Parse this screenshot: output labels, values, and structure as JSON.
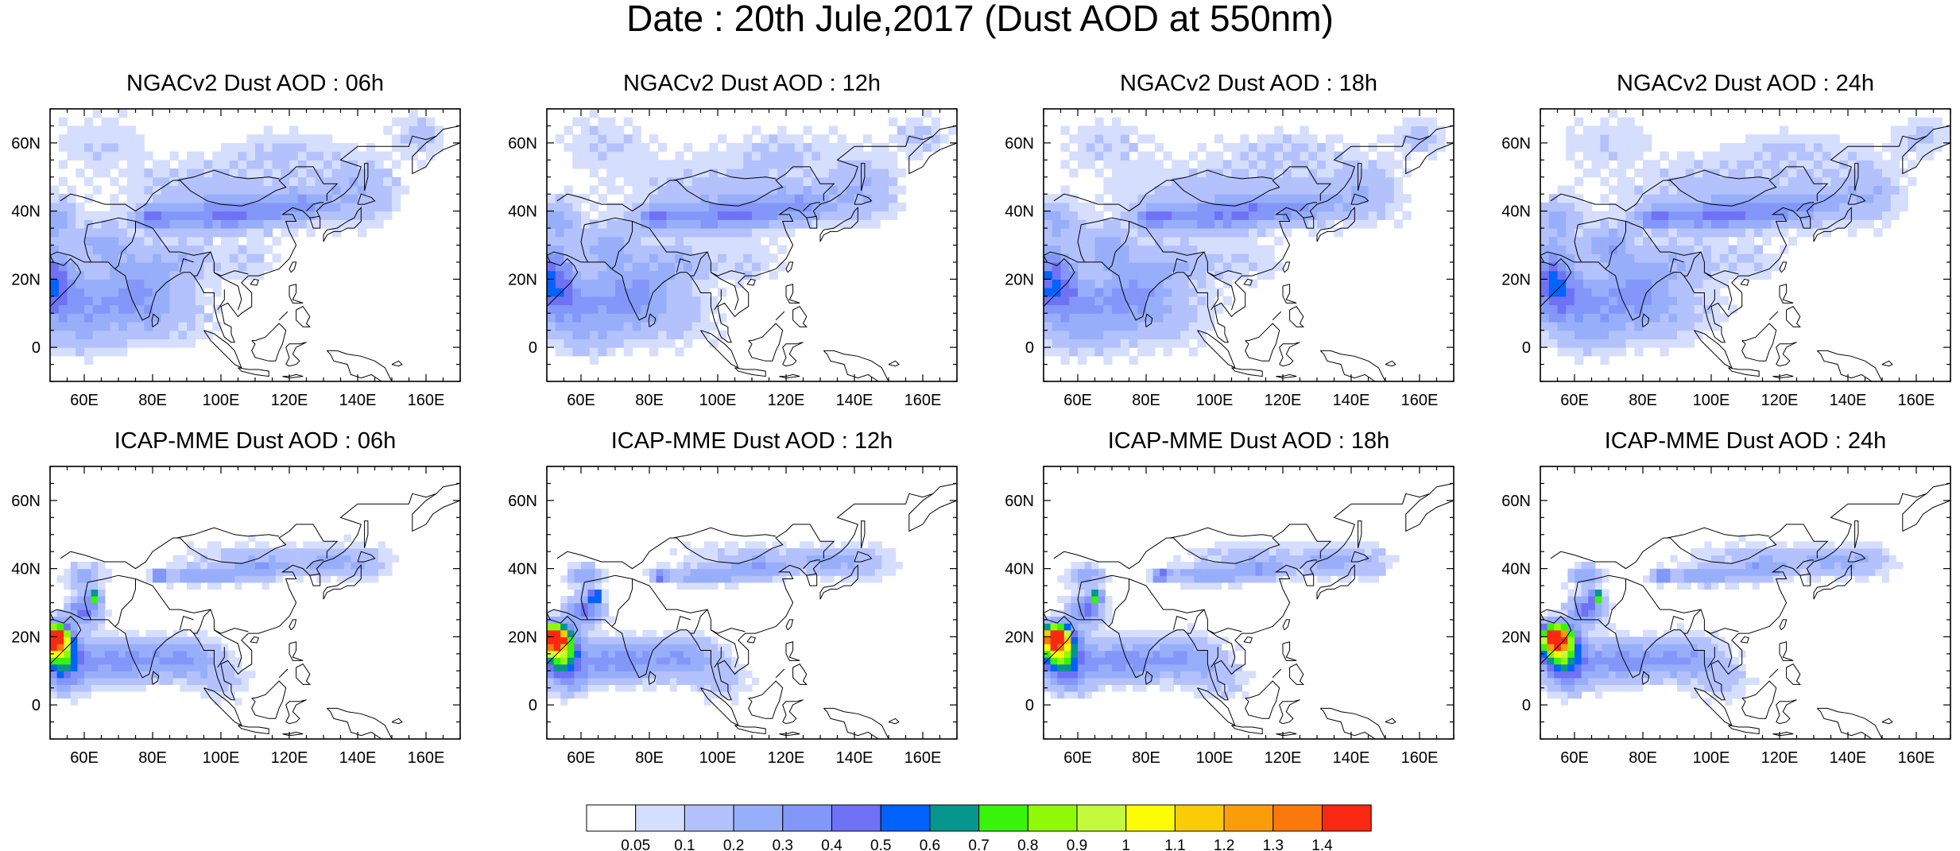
{
  "title": "Date : 20th Jule,2017 (Dust AOD at 550nm)",
  "panels": [
    {
      "title": "NGACv2 Dust AOD : 06h",
      "model": "ngac"
    },
    {
      "title": "NGACv2 Dust AOD : 12h",
      "model": "ngac"
    },
    {
      "title": "NGACv2 Dust AOD : 18h",
      "model": "ngac"
    },
    {
      "title": "NGACv2 Dust AOD : 24h",
      "model": "ngac"
    },
    {
      "title": "ICAP-MME Dust AOD : 06h",
      "model": "icap"
    },
    {
      "title": "ICAP-MME Dust AOD : 12h",
      "model": "icap"
    },
    {
      "title": "ICAP-MME Dust AOD : 18h",
      "model": "icap"
    },
    {
      "title": "ICAP-MME Dust AOD : 24h",
      "model": "icap"
    }
  ],
  "map": {
    "lon_range": [
      50,
      170
    ],
    "lat_range": [
      -10,
      70
    ],
    "lon_ticks": [
      "60E",
      "80E",
      "100E",
      "120E",
      "140E",
      "160E"
    ],
    "lat_ticks": [
      "60N",
      "40N",
      "20N",
      "0"
    ]
  },
  "colorbar": {
    "colors": [
      "#ffffff",
      "#d6defe",
      "#b3c1fd",
      "#97aefb",
      "#8297f9",
      "#6f72f5",
      "#0262fc",
      "#06968e",
      "#3af30a",
      "#8ffa07",
      "#c4fa3d",
      "#fcfc06",
      "#fbcb08",
      "#fb9d08",
      "#fa780c",
      "#f92911"
    ],
    "labels": [
      "0.05",
      "0.1",
      "0.2",
      "0.3",
      "0.4",
      "0.5",
      "0.6",
      "0.7",
      "0.8",
      "0.9",
      "1",
      "1.1",
      "1.2",
      "1.3",
      "1.4"
    ]
  }
}
